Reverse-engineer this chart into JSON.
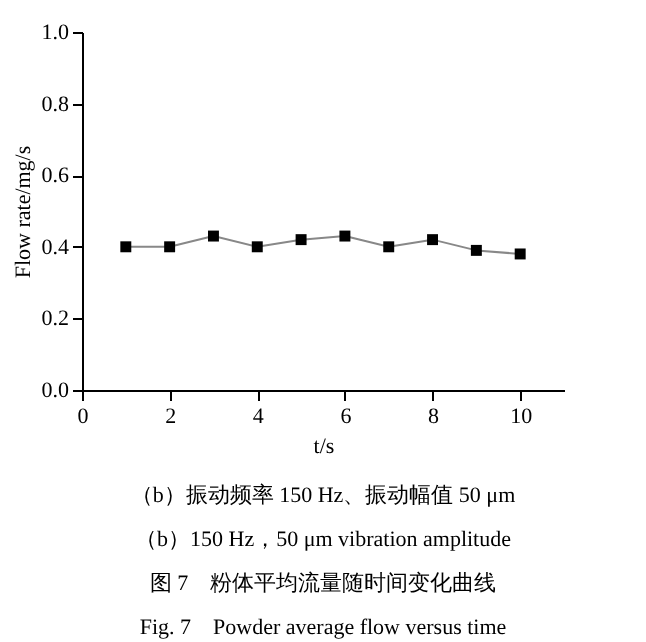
{
  "chart_data": {
    "type": "line",
    "xlabel": "t/s",
    "ylabel": "Flow rate/mg/s",
    "x": [
      1,
      2,
      3,
      4,
      5,
      6,
      7,
      8,
      9,
      10
    ],
    "series": [
      {
        "color": "#888888",
        "values": [
          0.4,
          0.4,
          0.43,
          0.4,
          0.42,
          0.43,
          0.4,
          0.42,
          0.39,
          0.38
        ]
      }
    ],
    "xlim": [
      0,
      11
    ],
    "xticks": [
      0,
      2,
      4,
      6,
      8,
      10
    ],
    "ylim": [
      0,
      1.0
    ],
    "yticks": [
      {
        "value": 0,
        "label": "0.0"
      },
      {
        "value": 0.2,
        "label": "0.2"
      },
      {
        "value": 0.4,
        "label": "0.4"
      },
      {
        "value": 0.6,
        "label": "0.6"
      },
      {
        "value": 0.8,
        "label": "0.8"
      },
      {
        "value": 1.0,
        "label": "1.0"
      }
    ],
    "marker": "square",
    "line_style": "solid",
    "annotations": [
      "（b）振动频率 150 Hz、振动幅值 50 μm",
      "（b）150 Hz，50 μm vibration amplitude",
      "图 7　粉体平均流量随时间变化曲线",
      "Fig. 7　Powder average flow versus time"
    ]
  }
}
